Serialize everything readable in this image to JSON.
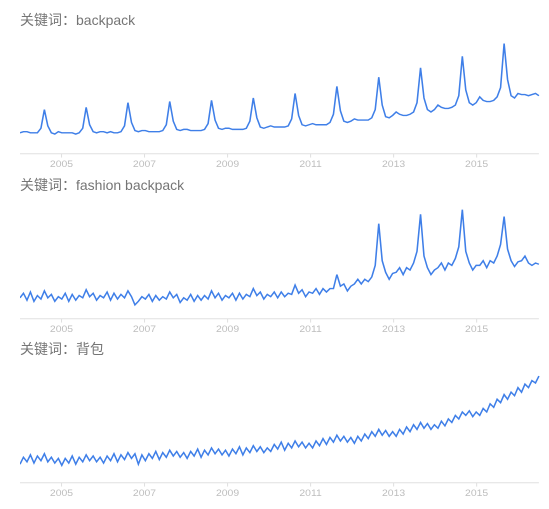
{
  "label_prefix": "关键词：",
  "global": {
    "line_color": "#3f7fe8",
    "line_width": 1.5,
    "axis_color": "#e0e0e0",
    "grid_color": "#e0e0e0",
    "background_color": "#ffffff",
    "xaxis_label_color": "#bdbdbd",
    "title_color": "#757575",
    "title_fontsize": 14,
    "xaxis_fontsize": 10,
    "x_range": [
      2004,
      2016.5
    ],
    "x_ticks": [
      2005,
      2007,
      2009,
      2011,
      2013,
      2015
    ],
    "points_per_year": 12
  },
  "panels": [
    {
      "keyword": "backpack",
      "type": "line",
      "ylim": [
        0,
        100
      ],
      "data": [
        18,
        19,
        19,
        18,
        18,
        18,
        22,
        38,
        24,
        18,
        17,
        19,
        18,
        18,
        18,
        18,
        17,
        18,
        22,
        40,
        25,
        19,
        18,
        19,
        19,
        18,
        19,
        18,
        18,
        19,
        24,
        44,
        27,
        20,
        19,
        20,
        20,
        19,
        19,
        19,
        19,
        20,
        25,
        45,
        28,
        21,
        20,
        21,
        21,
        20,
        20,
        20,
        20,
        21,
        26,
        46,
        29,
        22,
        21,
        22,
        22,
        21,
        21,
        21,
        21,
        22,
        28,
        48,
        31,
        23,
        22,
        23,
        24,
        23,
        23,
        23,
        23,
        24,
        30,
        52,
        33,
        25,
        24,
        25,
        26,
        25,
        25,
        25,
        25,
        27,
        34,
        58,
        37,
        28,
        27,
        28,
        30,
        29,
        29,
        29,
        29,
        31,
        38,
        66,
        42,
        32,
        31,
        33,
        36,
        34,
        33,
        33,
        34,
        36,
        44,
        74,
        48,
        38,
        36,
        38,
        42,
        40,
        39,
        39,
        40,
        42,
        50,
        84,
        55,
        44,
        42,
        44,
        49,
        46,
        45,
        45,
        46,
        49,
        57,
        95,
        64,
        50,
        48,
        52,
        51,
        51,
        50,
        51,
        52,
        50
      ]
    },
    {
      "keyword": "fashion backpack",
      "type": "line",
      "ylim": [
        0,
        100
      ],
      "data": [
        18,
        22,
        16,
        23,
        15,
        20,
        17,
        24,
        18,
        21,
        15,
        19,
        17,
        22,
        15,
        21,
        16,
        20,
        18,
        25,
        19,
        22,
        16,
        20,
        18,
        23,
        16,
        22,
        17,
        21,
        18,
        24,
        19,
        12,
        15,
        19,
        17,
        21,
        15,
        20,
        16,
        19,
        17,
        23,
        18,
        21,
        14,
        18,
        16,
        21,
        15,
        20,
        16,
        20,
        17,
        24,
        18,
        22,
        16,
        20,
        18,
        22,
        16,
        22,
        17,
        21,
        19,
        26,
        20,
        23,
        17,
        21,
        19,
        23,
        18,
        23,
        19,
        22,
        21,
        29,
        22,
        25,
        19,
        23,
        22,
        26,
        21,
        26,
        23,
        26,
        26,
        38,
        28,
        30,
        24,
        28,
        30,
        34,
        30,
        34,
        32,
        36,
        46,
        82,
        50,
        40,
        34,
        39,
        40,
        44,
        38,
        44,
        42,
        48,
        58,
        90,
        54,
        44,
        38,
        42,
        44,
        48,
        42,
        48,
        46,
        52,
        62,
        94,
        58,
        48,
        42,
        46,
        46,
        50,
        44,
        50,
        48,
        54,
        64,
        88,
        60,
        50,
        45,
        49,
        50,
        54,
        48,
        46,
        48,
        47
      ]
    },
    {
      "keyword": "背包",
      "type": "line",
      "ylim": [
        0,
        100
      ],
      "data": [
        16,
        22,
        18,
        24,
        17,
        23,
        19,
        25,
        18,
        22,
        17,
        21,
        15,
        21,
        17,
        23,
        16,
        22,
        18,
        24,
        19,
        23,
        18,
        22,
        17,
        23,
        19,
        25,
        18,
        24,
        20,
        26,
        21,
        25,
        16,
        24,
        19,
        25,
        21,
        27,
        20,
        26,
        22,
        28,
        23,
        27,
        22,
        26,
        21,
        27,
        23,
        29,
        22,
        28,
        24,
        30,
        25,
        29,
        24,
        28,
        23,
        29,
        25,
        31,
        24,
        30,
        26,
        32,
        27,
        31,
        26,
        30,
        27,
        33,
        29,
        35,
        28,
        34,
        30,
        36,
        31,
        35,
        30,
        34,
        30,
        36,
        32,
        38,
        33,
        39,
        35,
        41,
        36,
        40,
        35,
        39,
        34,
        40,
        36,
        42,
        38,
        44,
        40,
        46,
        41,
        45,
        40,
        44,
        40,
        46,
        42,
        48,
        44,
        50,
        46,
        52,
        47,
        51,
        46,
        50,
        47,
        53,
        49,
        55,
        52,
        58,
        55,
        61,
        58,
        62,
        57,
        61,
        58,
        64,
        61,
        68,
        65,
        72,
        69,
        76,
        72,
        78,
        75,
        82,
        78,
        85,
        82,
        88,
        86,
        92
      ]
    }
  ]
}
